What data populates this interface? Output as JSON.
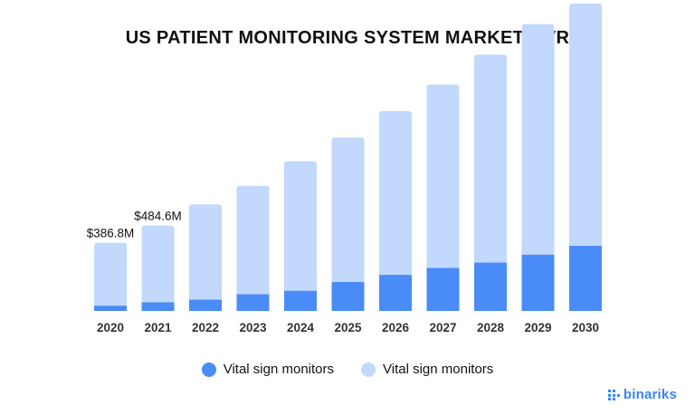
{
  "chart_data": {
    "type": "bar",
    "title": "US PATIENT MONITORING SYSTEM MARKET GVR",
    "categories": [
      "2020",
      "2021",
      "2022",
      "2023",
      "2024",
      "2025",
      "2026",
      "2027",
      "2028",
      "2029",
      "2030"
    ],
    "series": [
      {
        "name": "Vital sign monitors",
        "color": "#4a8cf7",
        "values": [
          30,
          50,
          65,
          95,
          115,
          165,
          205,
          245,
          275,
          320,
          370
        ]
      },
      {
        "name": "Vital sign monitors",
        "color": "#c2d8fd",
        "values": [
          356.8,
          434.6,
          540,
          615,
          735,
          820,
          930,
          1040,
          1180,
          1308,
          1375
        ]
      }
    ],
    "stacked": true,
    "data_labels": [
      {
        "category": "2020",
        "text": "$386.8M"
      },
      {
        "category": "2021",
        "text": "$484.6M"
      }
    ],
    "ylim": [
      0,
      1745
    ],
    "grid": false,
    "legend_position": "bottom"
  },
  "brand": {
    "name": "binariks",
    "logo": "binariks-logo-icon",
    "color": "#3b82f6"
  }
}
